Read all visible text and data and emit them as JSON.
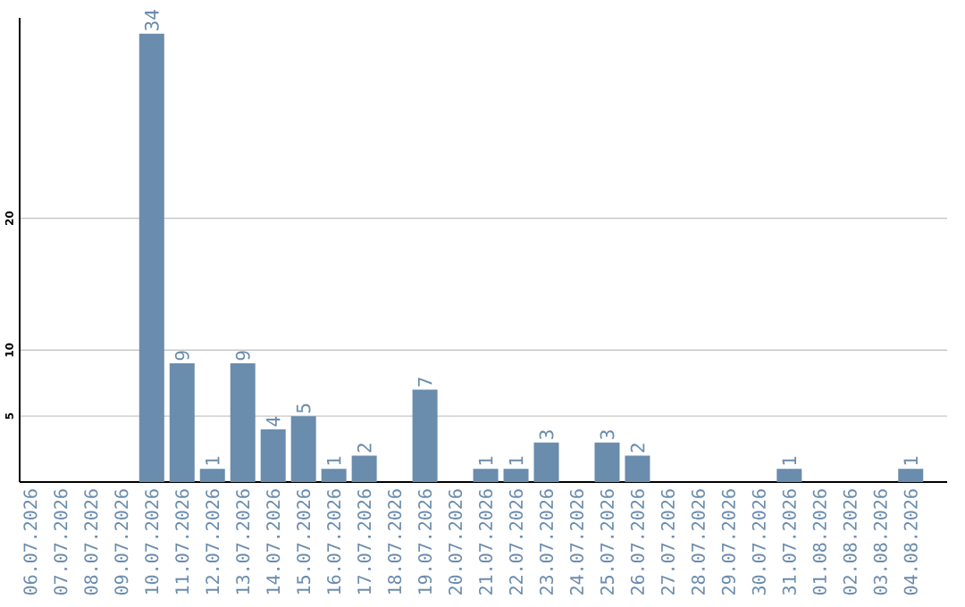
{
  "chart_data": {
    "type": "bar",
    "categories": [
      "06.07.2026",
      "07.07.2026",
      "08.07.2026",
      "09.07.2026",
      "10.07.2026",
      "11.07.2026",
      "12.07.2026",
      "13.07.2026",
      "14.07.2026",
      "15.07.2026",
      "16.07.2026",
      "17.07.2026",
      "18.07.2026",
      "19.07.2026",
      "20.07.2026",
      "21.07.2026",
      "22.07.2026",
      "23.07.2026",
      "24.07.2026",
      "25.07.2026",
      "26.07.2026",
      "27.07.2026",
      "28.07.2026",
      "29.07.2026",
      "30.07.2026",
      "31.07.2026",
      "01.08.2026",
      "02.08.2026",
      "03.08.2026",
      "04.08.2026"
    ],
    "values": [
      0,
      0,
      0,
      0,
      34,
      9,
      1,
      9,
      4,
      5,
      1,
      2,
      0,
      7,
      0,
      1,
      1,
      3,
      0,
      3,
      2,
      0,
      0,
      0,
      0,
      1,
      0,
      0,
      0,
      1
    ],
    "value_labels": [
      null,
      null,
      null,
      null,
      "34",
      "9",
      "1",
      "9",
      "4",
      "5",
      "1",
      "2",
      null,
      "7",
      null,
      "1",
      "1",
      "3",
      null,
      "3",
      "2",
      null,
      null,
      null,
      null,
      "1",
      null,
      null,
      null,
      "1"
    ],
    "color": "#6a8cad",
    "ylim": [
      0,
      35.2
    ],
    "yticks": [
      5,
      10,
      20
    ],
    "grid": "y"
  }
}
